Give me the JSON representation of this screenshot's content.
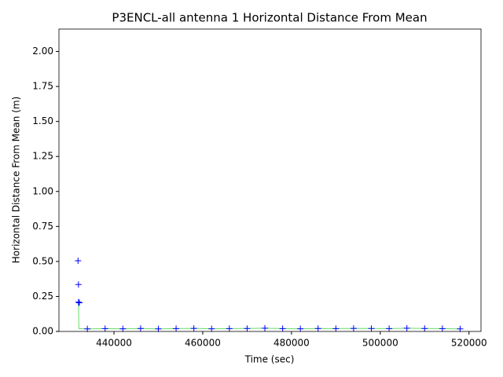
{
  "chart_data": {
    "type": "scatter",
    "title": "P3ENCL-all antenna 1 Horizontal Distance From Mean",
    "x_label": "Time (sec)",
    "y_label": "Horizontal Distance From Mean (m)",
    "xlim": [
      427600,
      522700
    ],
    "ylim": [
      0,
      2.16
    ],
    "xticks": [
      440000,
      460000,
      480000,
      500000,
      520000
    ],
    "yticks": [
      {
        "value": 0,
        "label": "0.00"
      },
      {
        "value": 0.25,
        "label": "0.25"
      },
      {
        "value": 0.5,
        "label": "0.50"
      },
      {
        "value": 0.75,
        "label": "0.75"
      },
      {
        "value": 1,
        "label": "1.00"
      },
      {
        "value": 1.25,
        "label": "1.25"
      },
      {
        "value": 1.5,
        "label": "1.50"
      },
      {
        "value": 1.75,
        "label": "1.75"
      },
      {
        "value": 2,
        "label": "2.00"
      }
    ],
    "series": [
      {
        "color": "#66dd66",
        "style": "line",
        "x": [
          432000,
          432100,
          434000,
          438000,
          442000,
          446000,
          450000,
          454000,
          458000,
          462000,
          466000,
          470000,
          474000,
          478000,
          482000,
          486000,
          490000,
          494000,
          498000,
          502000,
          506000,
          510000,
          514000,
          518000
        ],
        "values": [
          0.2,
          0.02,
          0.018,
          0.02,
          0.019,
          0.021,
          0.018,
          0.02,
          0.022,
          0.019,
          0.02,
          0.021,
          0.023,
          0.02,
          0.019,
          0.021,
          0.02,
          0.022,
          0.021,
          0.02,
          0.023,
          0.021,
          0.02,
          0.018
        ]
      },
      {
        "color": "#0000ff",
        "style": "plus",
        "x": [
          431900,
          432000,
          432000,
          432200,
          434000,
          438000,
          442000,
          446000,
          450000,
          454000,
          458000,
          462000,
          466000,
          470000,
          474000,
          478000,
          482000,
          486000,
          490000,
          494000,
          498000,
          502000,
          506000,
          510000,
          514000,
          518000
        ],
        "values": [
          0.505,
          0.335,
          0.21,
          0.205,
          0.018,
          0.02,
          0.019,
          0.021,
          0.018,
          0.02,
          0.022,
          0.019,
          0.02,
          0.021,
          0.023,
          0.02,
          0.019,
          0.021,
          0.02,
          0.022,
          0.021,
          0.02,
          0.023,
          0.021,
          0.02,
          0.018
        ]
      }
    ]
  }
}
